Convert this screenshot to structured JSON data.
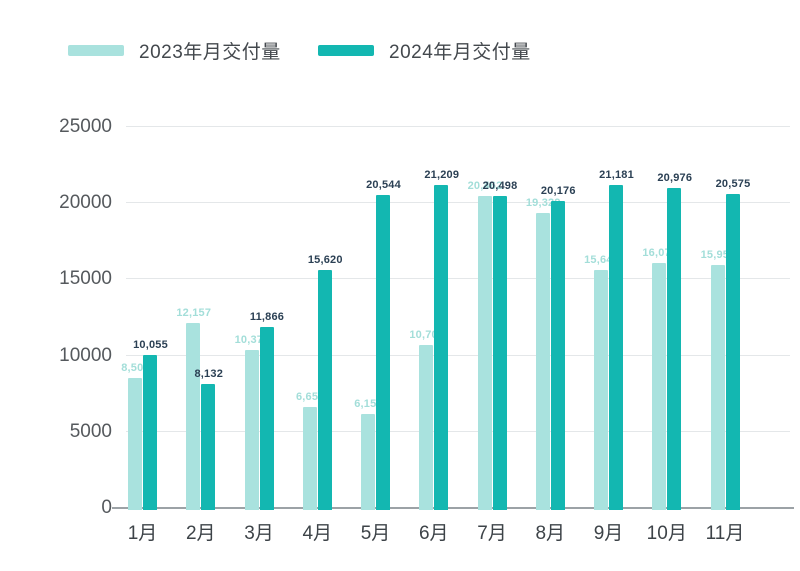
{
  "legend": {
    "items": [
      {
        "label": "2023年月交付量",
        "color": "#a9e2de"
      },
      {
        "label": "2024年月交付量",
        "color": "#13b7b1"
      }
    ]
  },
  "chart_data": {
    "type": "bar",
    "title": "",
    "categories": [
      "1月",
      "2月",
      "3月",
      "4月",
      "5月",
      "6月",
      "7月",
      "8月",
      "9月",
      "10月",
      "11月"
    ],
    "series": [
      {
        "name": "2023年月交付量",
        "color": "#a9e2de",
        "label_color": "#a3ded9",
        "values": [
          8506,
          12157,
          10378,
          6658,
          6155,
          10707,
          20462,
          19329,
          15641,
          16074,
          15959
        ]
      },
      {
        "name": "2024年月交付量",
        "color": "#13b7b1",
        "label_color": "#2b4054",
        "values": [
          10055,
          8132,
          11866,
          15620,
          20544,
          21209,
          20498,
          20176,
          21181,
          20976,
          20575
        ]
      }
    ],
    "xlabel": "",
    "ylabel": "",
    "ylim": [
      0,
      25000
    ],
    "yticks": [
      0,
      5000,
      10000,
      15000,
      20000,
      25000
    ],
    "grid": true,
    "legend_position": "top-left",
    "value_labels": true,
    "value_label_format": "thousands-comma"
  },
  "colors": {
    "background": "#ffffff",
    "gridline": "#e4e7e9",
    "baseline": "#9ca2a6",
    "y_tick_text": "#55595d",
    "x_tick_text": "#3d4348",
    "legend_text": "#43484d"
  }
}
